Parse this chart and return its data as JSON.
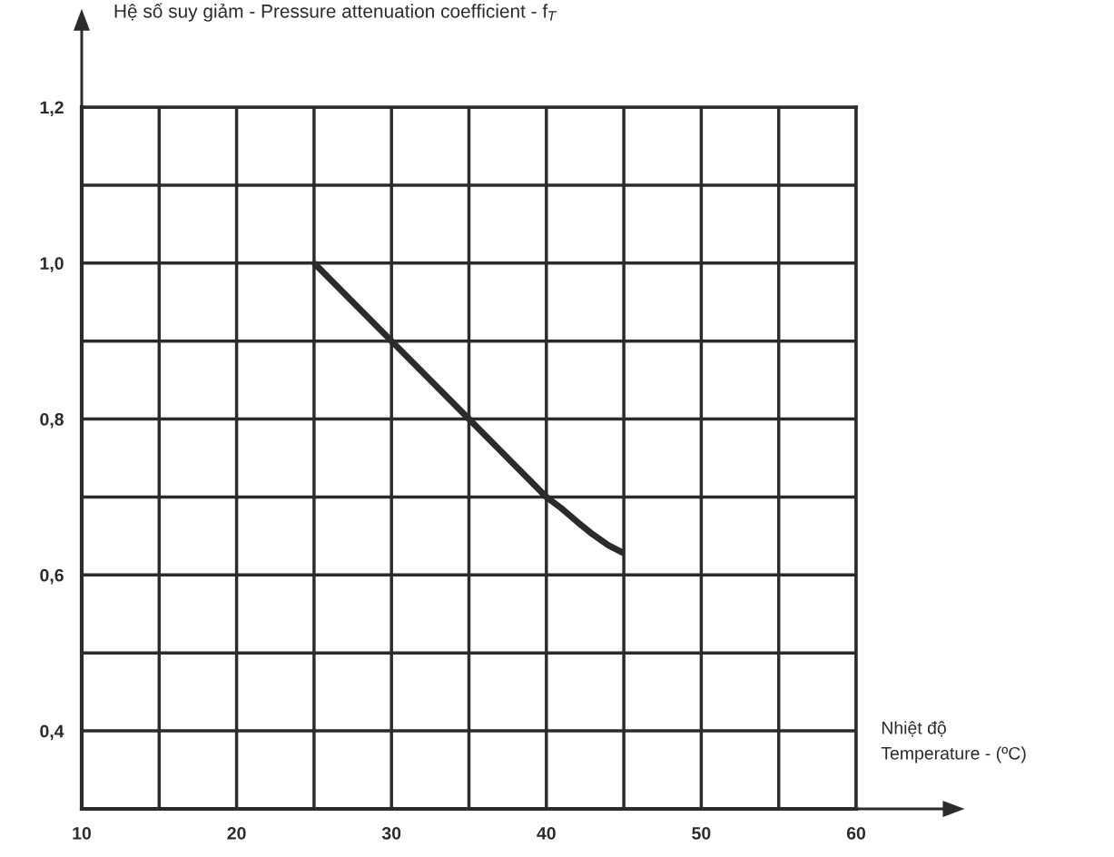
{
  "chart_data": {
    "type": "line",
    "ylabel": "Hệ số suy giảm - Pressure attenuation coefficient - f$_{T}$",
    "xlabel": "Nhiệt độ\nTemperature - (ºC)",
    "x": [
      25,
      30,
      35,
      40,
      41,
      42,
      43,
      44,
      45
    ],
    "series": [
      {
        "color": "#2b2b2b",
        "values": [
          1.0,
          0.9,
          0.8,
          0.7,
          0.685,
          0.668,
          0.652,
          0.638,
          0.628
        ]
      }
    ],
    "xlim": [
      10,
      60
    ],
    "xticks": [
      10,
      {
        "value": 15,
        "label": null
      },
      20,
      {
        "value": 25,
        "label": null
      },
      30,
      {
        "value": 35,
        "label": null
      },
      40,
      {
        "value": 45,
        "label": null
      },
      50,
      {
        "value": 55,
        "label": null
      },
      60
    ],
    "ylim": [
      0.3,
      1.2
    ],
    "yticks": [
      {
        "value": 0.4,
        "label": "0,4"
      },
      {
        "value": 0.5,
        "label": null
      },
      {
        "value": 0.6,
        "label": "0,6"
      },
      {
        "value": 0.7,
        "label": null
      },
      {
        "value": 0.8,
        "label": "0,8"
      },
      {
        "value": 0.9,
        "label": null
      },
      {
        "value": 1.0,
        "label": "1,0"
      },
      {
        "value": 1.1,
        "label": null
      },
      {
        "value": 1.2,
        "label": "1,2"
      }
    ],
    "grid": true,
    "marker": "none",
    "line_style": "solid"
  }
}
